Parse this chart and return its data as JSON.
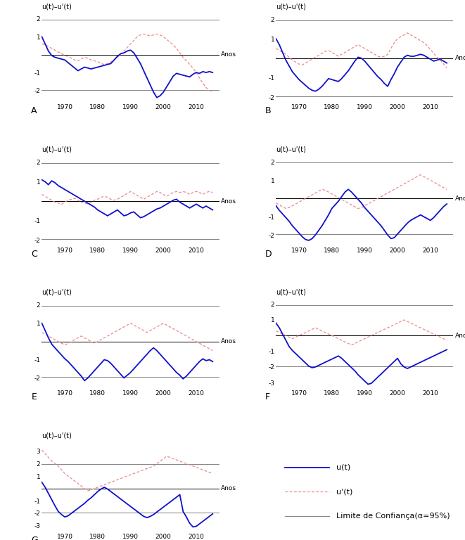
{
  "years": [
    1963,
    1964,
    1965,
    1966,
    1967,
    1968,
    1969,
    1970,
    1971,
    1972,
    1973,
    1974,
    1975,
    1976,
    1977,
    1978,
    1979,
    1980,
    1981,
    1982,
    1983,
    1984,
    1985,
    1986,
    1987,
    1988,
    1989,
    1990,
    1991,
    1992,
    1993,
    1994,
    1995,
    1996,
    1997,
    1998,
    1999,
    2000,
    2001,
    2002,
    2003,
    2004,
    2005,
    2006,
    2007,
    2008,
    2009,
    2010,
    2011,
    2012,
    2013,
    2014,
    2015
  ],
  "ut_A": [
    1.0,
    0.6,
    0.2,
    -0.05,
    -0.15,
    -0.2,
    -0.25,
    -0.3,
    -0.45,
    -0.6,
    -0.75,
    -0.9,
    -0.8,
    -0.7,
    -0.75,
    -0.8,
    -0.75,
    -0.7,
    -0.65,
    -0.6,
    -0.55,
    -0.5,
    -0.3,
    -0.1,
    0.05,
    0.1,
    0.2,
    0.25,
    0.1,
    -0.2,
    -0.5,
    -0.9,
    -1.3,
    -1.7,
    -2.1,
    -2.4,
    -2.3,
    -2.1,
    -1.8,
    -1.5,
    -1.2,
    -1.05,
    -1.1,
    -1.15,
    -1.2,
    -1.25,
    -1.1,
    -1.0,
    -1.05,
    -0.95,
    -1.0,
    -0.95,
    -1.0
  ],
  "utp_A": [
    0.6,
    0.55,
    0.45,
    0.35,
    0.25,
    0.15,
    0.05,
    -0.05,
    -0.1,
    -0.2,
    -0.3,
    -0.35,
    -0.25,
    -0.15,
    -0.2,
    -0.3,
    -0.35,
    -0.4,
    -0.5,
    -0.55,
    -0.5,
    -0.4,
    -0.3,
    -0.15,
    0.05,
    0.2,
    0.4,
    0.6,
    0.8,
    1.0,
    1.1,
    1.15,
    1.1,
    1.05,
    1.1,
    1.15,
    1.1,
    1.0,
    0.85,
    0.7,
    0.55,
    0.35,
    0.1,
    -0.15,
    -0.35,
    -0.55,
    -0.75,
    -1.0,
    -1.3,
    -1.6,
    -1.85,
    -2.0,
    -2.1
  ],
  "ut_B": [
    1.0,
    0.7,
    0.3,
    -0.1,
    -0.4,
    -0.7,
    -0.9,
    -1.1,
    -1.25,
    -1.4,
    -1.55,
    -1.65,
    -1.7,
    -1.6,
    -1.45,
    -1.25,
    -1.05,
    -1.1,
    -1.15,
    -1.2,
    -1.05,
    -0.85,
    -0.65,
    -0.4,
    -0.15,
    0.05,
    0.0,
    -0.15,
    -0.35,
    -0.55,
    -0.75,
    -0.95,
    -1.1,
    -1.3,
    -1.45,
    -1.1,
    -0.8,
    -0.45,
    -0.2,
    0.05,
    0.15,
    0.1,
    0.1,
    0.15,
    0.2,
    0.15,
    0.05,
    -0.05,
    -0.15,
    -0.1,
    -0.05,
    -0.15,
    -0.25
  ],
  "utp_B": [
    0.5,
    0.4,
    0.3,
    0.2,
    0.05,
    -0.1,
    -0.2,
    -0.3,
    -0.35,
    -0.25,
    -0.15,
    -0.05,
    0.05,
    0.15,
    0.25,
    0.35,
    0.4,
    0.3,
    0.2,
    0.1,
    0.2,
    0.3,
    0.4,
    0.5,
    0.6,
    0.7,
    0.6,
    0.5,
    0.4,
    0.3,
    0.2,
    0.1,
    0.05,
    0.1,
    0.2,
    0.5,
    0.8,
    1.0,
    1.1,
    1.2,
    1.3,
    1.2,
    1.1,
    1.0,
    0.9,
    0.8,
    0.65,
    0.45,
    0.25,
    0.05,
    -0.1,
    -0.3,
    -0.5
  ],
  "ut_C": [
    1.1,
    1.0,
    0.85,
    1.05,
    0.95,
    0.8,
    0.7,
    0.6,
    0.5,
    0.4,
    0.3,
    0.2,
    0.1,
    0.0,
    -0.1,
    -0.2,
    -0.3,
    -0.45,
    -0.55,
    -0.65,
    -0.75,
    -0.65,
    -0.55,
    -0.45,
    -0.6,
    -0.75,
    -0.7,
    -0.6,
    -0.55,
    -0.7,
    -0.85,
    -0.8,
    -0.7,
    -0.6,
    -0.5,
    -0.4,
    -0.35,
    -0.25,
    -0.15,
    -0.05,
    0.05,
    0.1,
    -0.05,
    -0.15,
    -0.25,
    -0.35,
    -0.25,
    -0.15,
    -0.25,
    -0.35,
    -0.25,
    -0.35,
    -0.45
  ],
  "utp_C": [
    0.35,
    0.25,
    0.15,
    0.05,
    -0.05,
    -0.1,
    -0.15,
    -0.05,
    0.05,
    0.1,
    0.15,
    0.05,
    -0.05,
    -0.1,
    -0.15,
    -0.05,
    0.05,
    0.1,
    0.2,
    0.25,
    0.2,
    0.1,
    0.05,
    0.1,
    0.2,
    0.3,
    0.4,
    0.5,
    0.4,
    0.3,
    0.2,
    0.1,
    0.2,
    0.3,
    0.4,
    0.5,
    0.45,
    0.35,
    0.25,
    0.35,
    0.45,
    0.5,
    0.45,
    0.5,
    0.45,
    0.35,
    0.45,
    0.5,
    0.45,
    0.35,
    0.45,
    0.5,
    0.45
  ],
  "ut_D": [
    -0.4,
    -0.65,
    -0.85,
    -1.05,
    -1.25,
    -1.5,
    -1.7,
    -1.9,
    -2.1,
    -2.25,
    -2.3,
    -2.2,
    -2.0,
    -1.75,
    -1.5,
    -1.2,
    -0.9,
    -0.55,
    -0.35,
    -0.15,
    0.1,
    0.35,
    0.5,
    0.35,
    0.15,
    -0.05,
    -0.25,
    -0.5,
    -0.7,
    -0.9,
    -1.1,
    -1.3,
    -1.5,
    -1.75,
    -2.0,
    -2.2,
    -2.15,
    -1.95,
    -1.75,
    -1.55,
    -1.35,
    -1.2,
    -1.1,
    -1.0,
    -0.9,
    -1.0,
    -1.1,
    -1.2,
    -1.05,
    -0.85,
    -0.65,
    -0.45,
    -0.3
  ],
  "utp_D": [
    -0.25,
    -0.35,
    -0.45,
    -0.55,
    -0.5,
    -0.4,
    -0.3,
    -0.2,
    -0.1,
    0.0,
    0.1,
    0.2,
    0.3,
    0.4,
    0.5,
    0.45,
    0.35,
    0.25,
    0.15,
    0.05,
    -0.05,
    -0.15,
    -0.25,
    -0.35,
    -0.45,
    -0.55,
    -0.5,
    -0.4,
    -0.3,
    -0.2,
    -0.1,
    0.0,
    0.1,
    0.2,
    0.3,
    0.4,
    0.5,
    0.6,
    0.7,
    0.8,
    0.9,
    1.0,
    1.1,
    1.2,
    1.3,
    1.2,
    1.1,
    1.0,
    0.9,
    0.8,
    0.7,
    0.6,
    0.5
  ],
  "ut_E": [
    1.0,
    0.6,
    0.2,
    -0.15,
    -0.35,
    -0.55,
    -0.75,
    -0.95,
    -1.1,
    -1.3,
    -1.5,
    -1.7,
    -1.9,
    -2.15,
    -2.0,
    -1.8,
    -1.6,
    -1.4,
    -1.2,
    -1.0,
    -1.05,
    -1.2,
    -1.4,
    -1.6,
    -1.8,
    -2.0,
    -1.85,
    -1.7,
    -1.5,
    -1.3,
    -1.1,
    -0.9,
    -0.7,
    -0.5,
    -0.35,
    -0.5,
    -0.7,
    -0.9,
    -1.1,
    -1.3,
    -1.5,
    -1.7,
    -1.85,
    -2.05,
    -1.9,
    -1.7,
    -1.5,
    -1.3,
    -1.1,
    -0.95,
    -1.05,
    -1.0,
    -1.1
  ],
  "utp_E": [
    0.5,
    0.4,
    0.3,
    0.2,
    0.1,
    0.0,
    -0.1,
    -0.2,
    -0.1,
    0.0,
    0.1,
    0.2,
    0.3,
    0.2,
    0.1,
    0.0,
    -0.1,
    0.0,
    0.1,
    0.2,
    0.3,
    0.4,
    0.5,
    0.6,
    0.7,
    0.8,
    0.9,
    1.0,
    0.9,
    0.8,
    0.7,
    0.6,
    0.5,
    0.6,
    0.7,
    0.8,
    0.9,
    1.0,
    0.9,
    0.8,
    0.7,
    0.6,
    0.5,
    0.4,
    0.3,
    0.2,
    0.1,
    0.0,
    -0.1,
    -0.2,
    -0.3,
    -0.4,
    -0.5
  ],
  "ut_F": [
    0.8,
    0.5,
    0.1,
    -0.3,
    -0.7,
    -0.95,
    -1.15,
    -1.35,
    -1.55,
    -1.75,
    -1.95,
    -2.05,
    -2.0,
    -1.9,
    -1.8,
    -1.7,
    -1.6,
    -1.5,
    -1.4,
    -1.3,
    -1.45,
    -1.65,
    -1.85,
    -2.05,
    -2.25,
    -2.5,
    -2.7,
    -2.9,
    -3.1,
    -3.05,
    -2.85,
    -2.65,
    -2.45,
    -2.25,
    -2.05,
    -1.85,
    -1.65,
    -1.45,
    -1.8,
    -2.0,
    -2.1,
    -2.0,
    -1.9,
    -1.8,
    -1.7,
    -1.6,
    -1.5,
    -1.4,
    -1.3,
    -1.2,
    -1.1,
    -1.0,
    -0.9
  ],
  "utp_F": [
    0.3,
    0.2,
    0.1,
    0.0,
    -0.1,
    -0.2,
    -0.1,
    0.0,
    0.1,
    0.2,
    0.3,
    0.4,
    0.5,
    0.4,
    0.3,
    0.2,
    0.1,
    0.0,
    -0.1,
    -0.2,
    -0.3,
    -0.4,
    -0.5,
    -0.6,
    -0.5,
    -0.4,
    -0.3,
    -0.2,
    -0.1,
    0.0,
    0.1,
    0.2,
    0.3,
    0.4,
    0.5,
    0.6,
    0.7,
    0.8,
    0.9,
    1.0,
    0.9,
    0.8,
    0.7,
    0.6,
    0.5,
    0.4,
    0.3,
    0.2,
    0.1,
    0.0,
    -0.1,
    -0.2,
    -0.3
  ],
  "ut_G": [
    0.5,
    0.1,
    -0.4,
    -0.9,
    -1.4,
    -1.85,
    -2.1,
    -2.3,
    -2.2,
    -2.0,
    -1.8,
    -1.6,
    -1.4,
    -1.2,
    -0.95,
    -0.75,
    -0.5,
    -0.25,
    -0.05,
    0.1,
    -0.05,
    -0.25,
    -0.45,
    -0.65,
    -0.85,
    -1.05,
    -1.25,
    -1.45,
    -1.65,
    -1.85,
    -2.05,
    -2.25,
    -2.35,
    -2.25,
    -2.1,
    -1.9,
    -1.7,
    -1.5,
    -1.3,
    -1.1,
    -0.9,
    -0.7,
    -0.5,
    -1.85,
    -2.3,
    -2.8,
    -3.1,
    -3.05,
    -2.85,
    -2.65,
    -2.45,
    -2.25,
    -2.05
  ],
  "utp_G": [
    3.1,
    2.8,
    2.5,
    2.2,
    2.0,
    1.8,
    1.5,
    1.2,
    1.0,
    0.8,
    0.6,
    0.4,
    0.2,
    0.0,
    -0.2,
    -0.1,
    0.0,
    0.1,
    0.2,
    0.3,
    0.4,
    0.5,
    0.6,
    0.7,
    0.8,
    0.9,
    1.0,
    1.1,
    1.2,
    1.3,
    1.4,
    1.5,
    1.6,
    1.7,
    1.8,
    2.0,
    2.2,
    2.4,
    2.6,
    2.5,
    2.4,
    2.3,
    2.2,
    2.1,
    2.0,
    1.9,
    1.8,
    1.7,
    1.6,
    1.5,
    1.4,
    1.3,
    1.2
  ],
  "confidence_limit": 1.96,
  "ut_color": "#1010CC",
  "utp_color": "#EE8888",
  "cl_color": "#888888",
  "panel_labels": [
    "A",
    "B",
    "C",
    "D",
    "E",
    "F",
    "G"
  ],
  "ylabel": "u(t)–u'(t)",
  "xlabel": "Anos",
  "legend_ut": "u(t)",
  "legend_utp": "u'(t)",
  "legend_cl": "Limite de Confiança(α=95%)",
  "ylims": {
    "A": [
      -2.7,
      2.3
    ],
    "B": [
      -2.3,
      2.3
    ],
    "C": [
      -2.3,
      2.3
    ],
    "D": [
      -2.6,
      2.3
    ],
    "E": [
      -2.6,
      2.3
    ],
    "F": [
      -3.4,
      2.3
    ],
    "G": [
      -3.5,
      3.7
    ]
  },
  "yticks": {
    "A": [
      -2,
      -1,
      1,
      2
    ],
    "B": [
      -2,
      -1,
      1,
      2
    ],
    "C": [
      -2,
      -1,
      1,
      2
    ],
    "D": [
      -2,
      -1,
      1,
      2
    ],
    "E": [
      -2,
      -1,
      1,
      2
    ],
    "F": [
      -3,
      -2,
      -1,
      1,
      2
    ],
    "G": [
      -3,
      -2,
      -1,
      1,
      2,
      3
    ]
  }
}
